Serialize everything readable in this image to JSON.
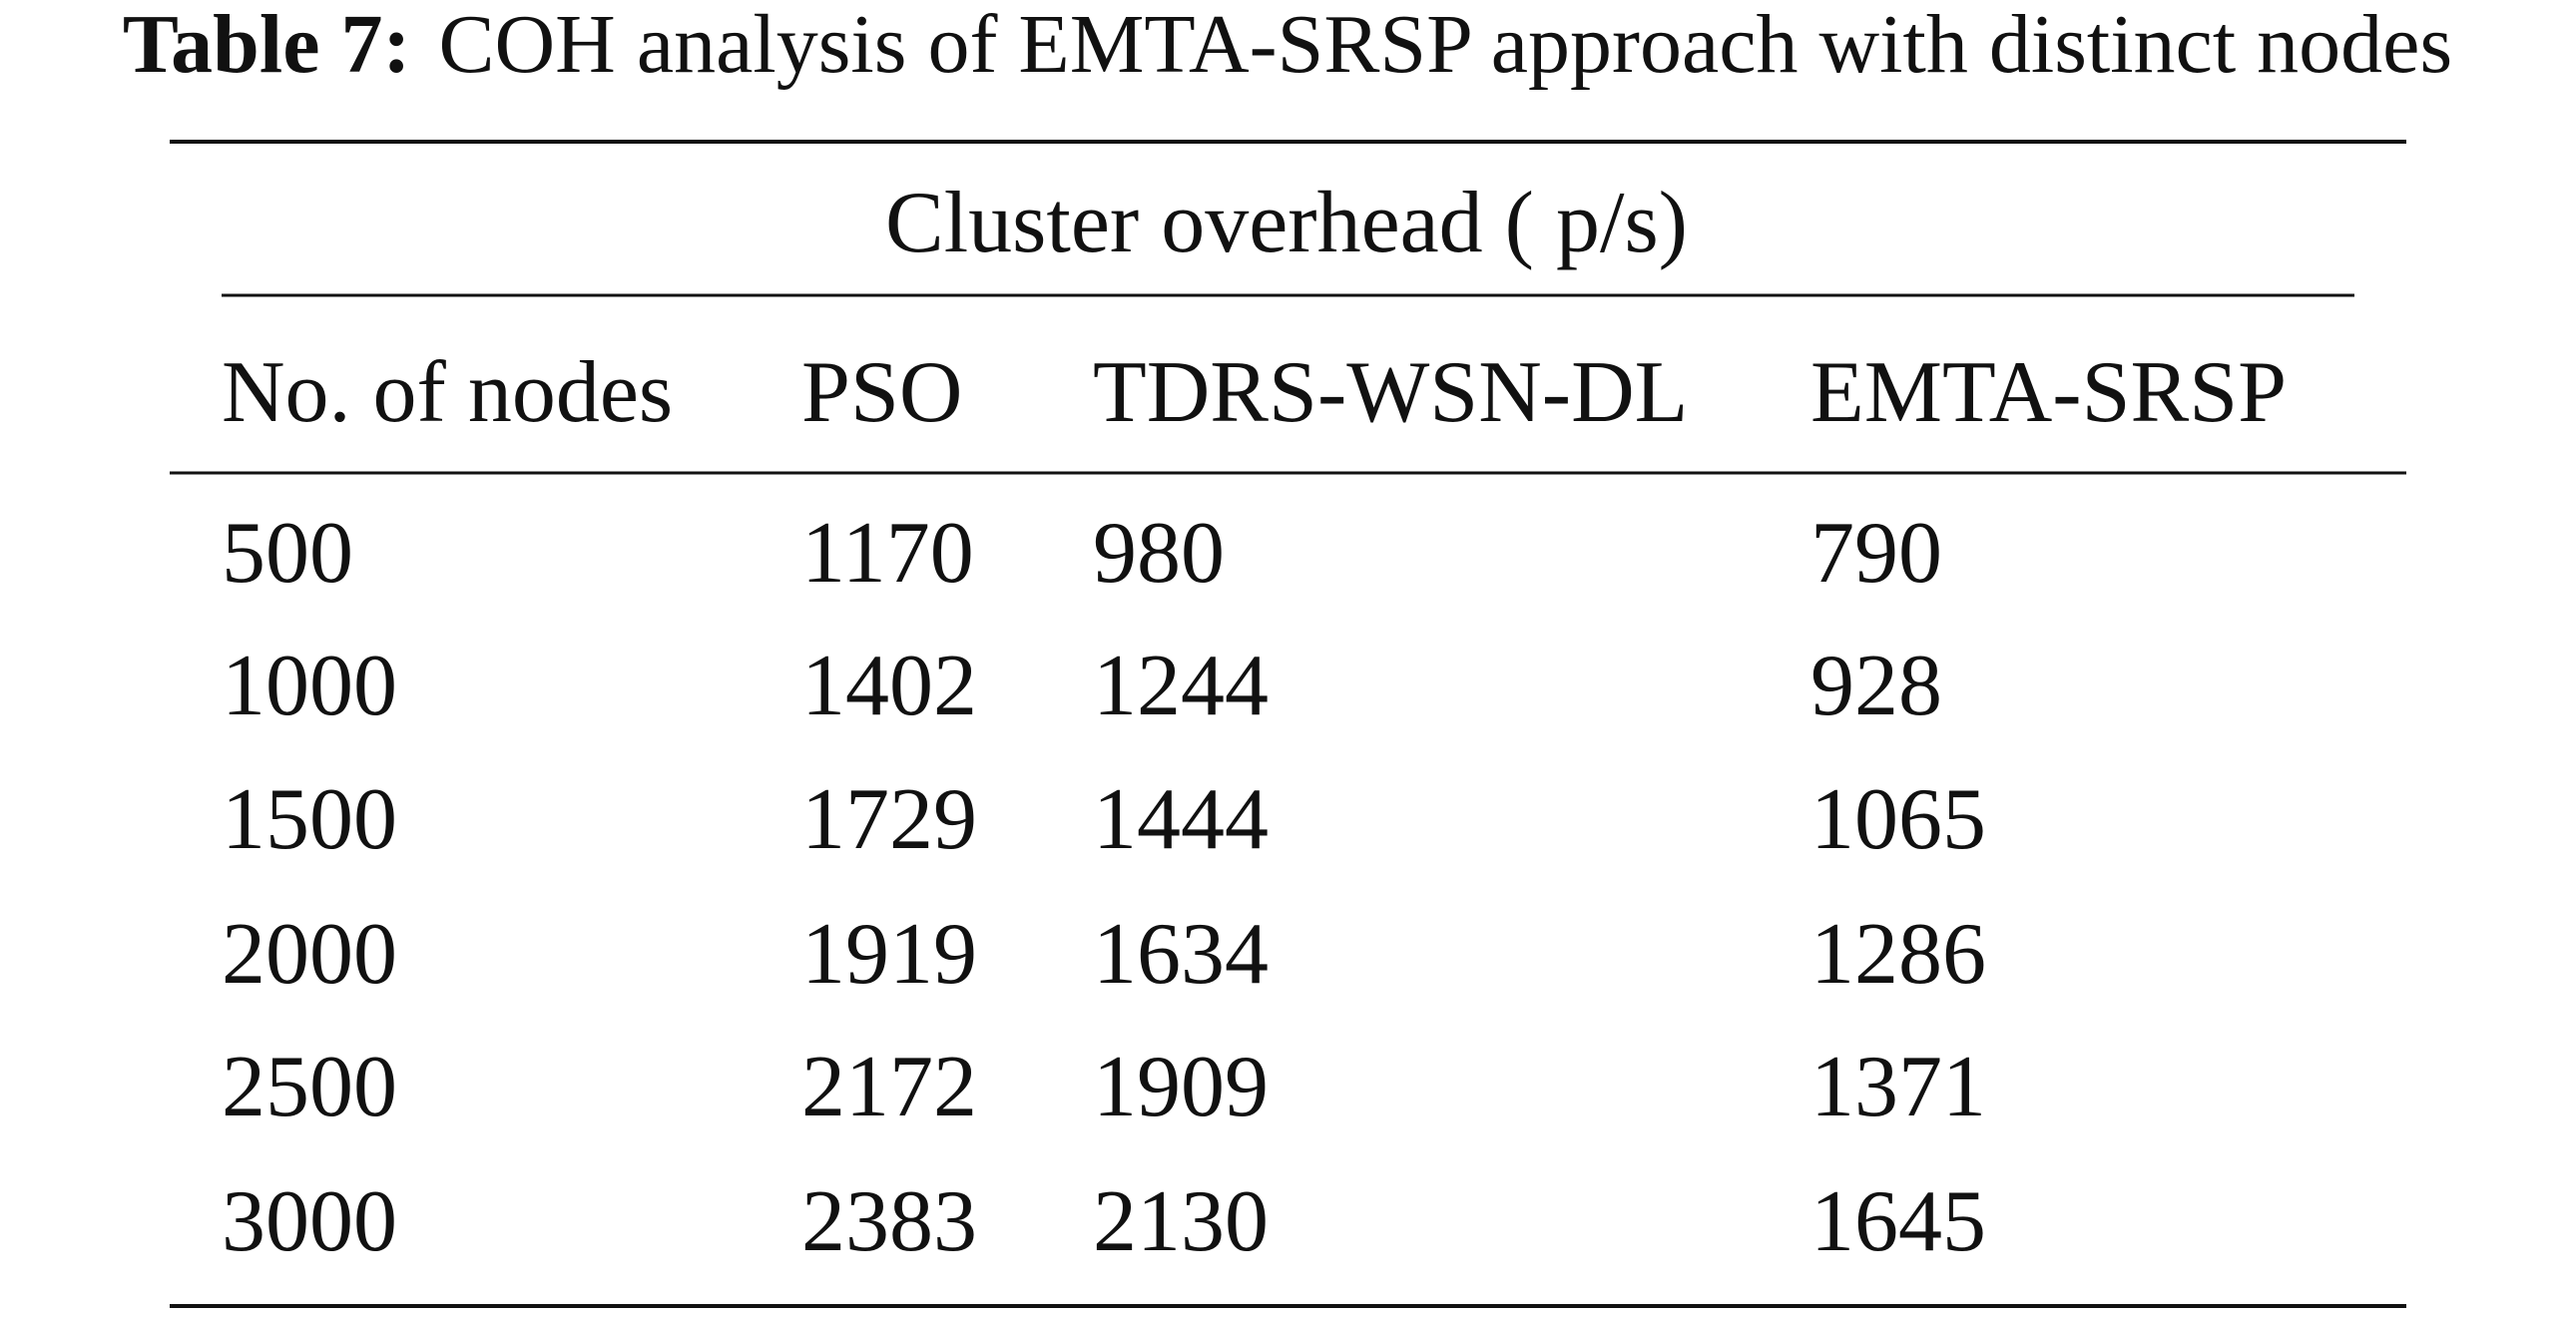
{
  "caption": {
    "label": "Table 7:",
    "text": "COH analysis of EMTA-SRSP approach with distinct nodes"
  },
  "table": {
    "group_header": "Cluster overhead ( p/s)",
    "columns": [
      "No. of nodes",
      "PSO",
      "TDRS-WSN-DL",
      "EMTA-SRSP"
    ],
    "rows": [
      [
        500,
        1170,
        980,
        790
      ],
      [
        1000,
        1402,
        1244,
        928
      ],
      [
        1500,
        1729,
        1444,
        1065
      ],
      [
        2000,
        1919,
        1634,
        1286
      ],
      [
        2500,
        2172,
        1909,
        1371
      ],
      [
        3000,
        2383,
        2130,
        1645
      ]
    ]
  }
}
